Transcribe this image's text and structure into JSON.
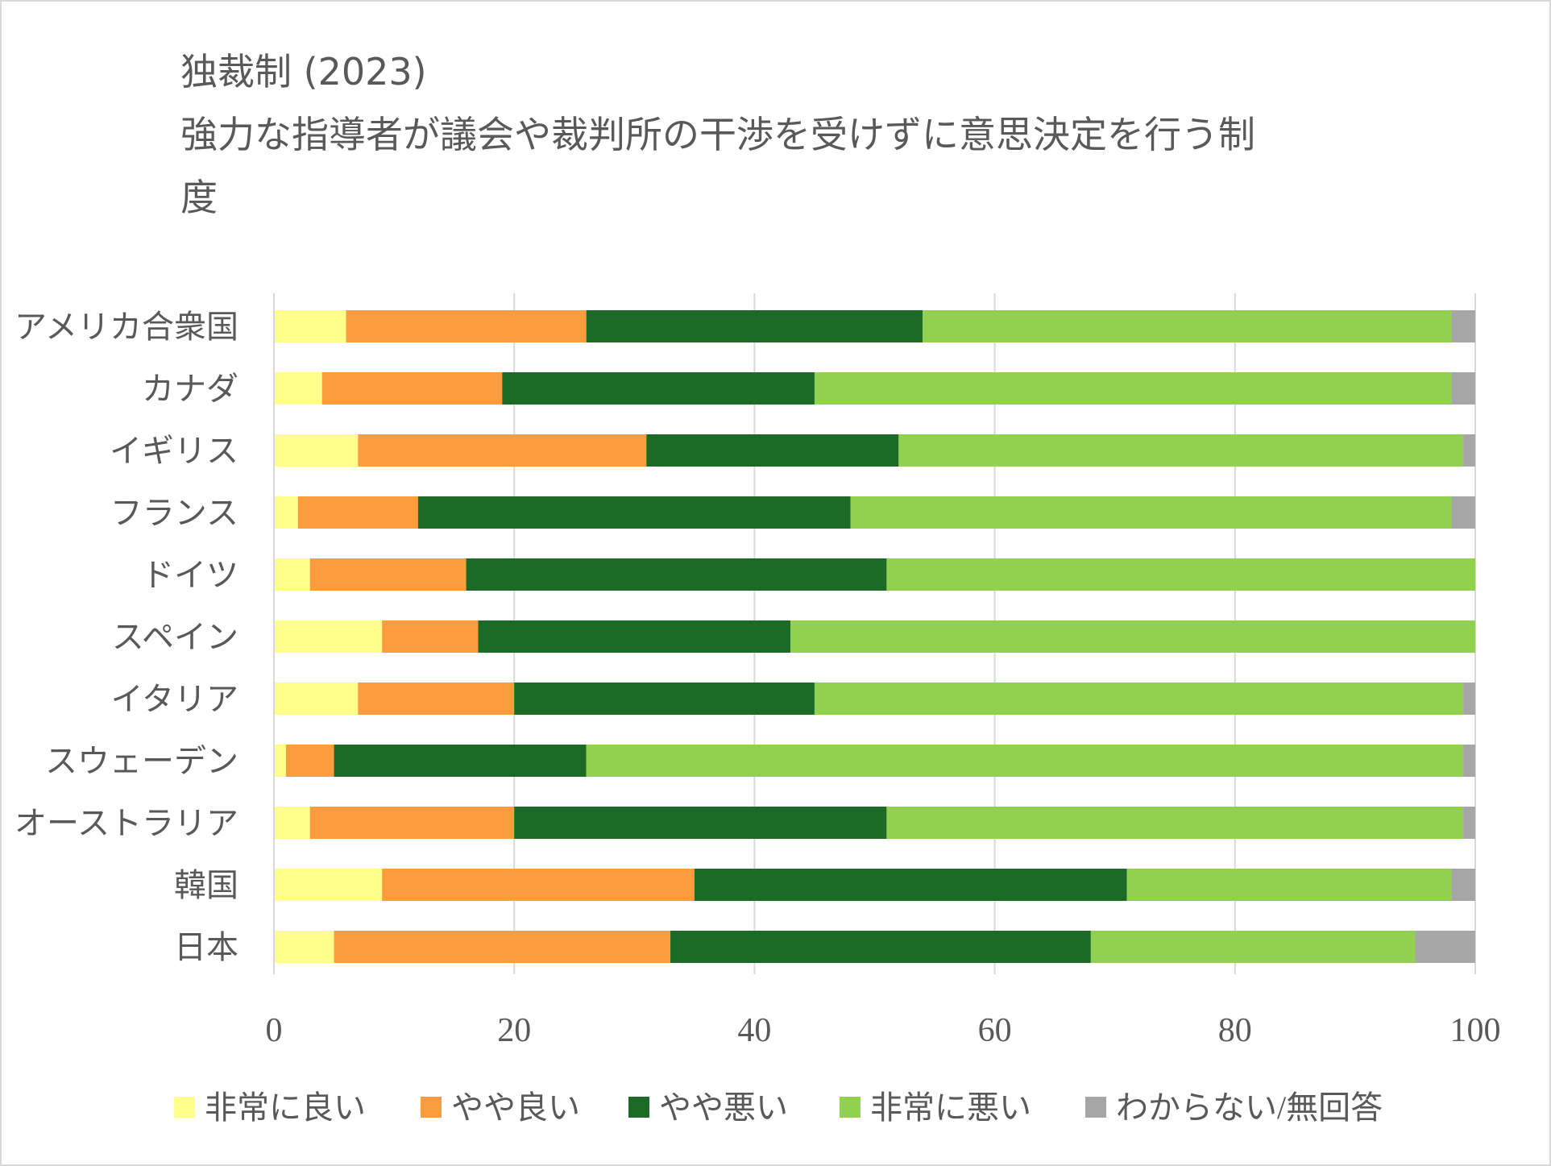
{
  "chart_data": {
    "type": "bar",
    "orientation": "horizontal",
    "stacked": true,
    "title": "独裁制 (2023)",
    "subtitle_lines": [
      "強力な指導者が議会や裁判所の干渉を受けずに意思決定を行う制",
      "度"
    ],
    "categories": [
      "アメリカ合衆国",
      "カナダ",
      "イギリス",
      "フランス",
      "ドイツ",
      "スペイン",
      "イタリア",
      "スウェーデン",
      "オーストラリア",
      "韓国",
      "日本"
    ],
    "xlim": [
      0,
      100
    ],
    "xticks": [
      "0",
      "20",
      "40",
      "60",
      "80",
      "100"
    ],
    "grid": "vertical",
    "legend_position": "bottom",
    "series": [
      {
        "name": "非常に良い",
        "color": "#ffff8c",
        "values": [
          6,
          4,
          7,
          2,
          3,
          9,
          7,
          1,
          3,
          9,
          5
        ]
      },
      {
        "name": "やや良い",
        "color": "#fd9c3c",
        "values": [
          20,
          15,
          24,
          10,
          13,
          8,
          13,
          4,
          17,
          26,
          28
        ]
      },
      {
        "name": "やや悪い",
        "color": "#1b6b26",
        "values": [
          28,
          26,
          21,
          36,
          35,
          26,
          25,
          21,
          31,
          36,
          35
        ]
      },
      {
        "name": "非常に悪い",
        "color": "#92d050",
        "values": [
          44,
          53,
          47,
          50,
          49,
          57,
          54,
          73,
          48,
          27,
          27
        ]
      },
      {
        "name": "わからない/無回答",
        "color": "#a6a6a6",
        "values": [
          2,
          2,
          1,
          2,
          0,
          0,
          1,
          1,
          1,
          2,
          5
        ]
      }
    ]
  }
}
